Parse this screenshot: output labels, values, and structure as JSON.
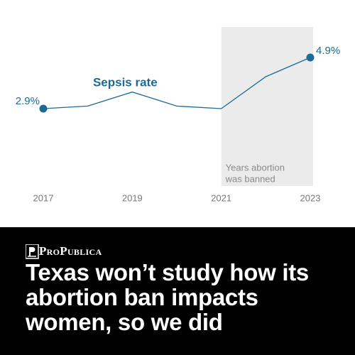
{
  "chart_data": {
    "type": "line",
    "x": [
      2017,
      2018,
      2019,
      2020,
      2021,
      2022,
      2023
    ],
    "xlim": [
      2017,
      2023
    ],
    "xticks": [
      2017,
      2019,
      2021,
      2023
    ],
    "series": [
      {
        "name": "Sepsis rate",
        "color": "#1d6a96",
        "values": [
          2.9,
          3.0,
          3.55,
          3.0,
          2.9,
          4.15,
          4.9
        ],
        "value_labels": [
          "2.9%",
          null,
          null,
          null,
          null,
          null,
          "4.9%"
        ]
      }
    ],
    "shaded_range": [
      2021,
      2023
    ],
    "annotation": [
      "Years abortion",
      "was banned"
    ]
  },
  "banner": {
    "brand": "ProPublica",
    "headline": [
      "Texas won’t study how its",
      "abortion ban impacts",
      "women, so we did"
    ]
  }
}
